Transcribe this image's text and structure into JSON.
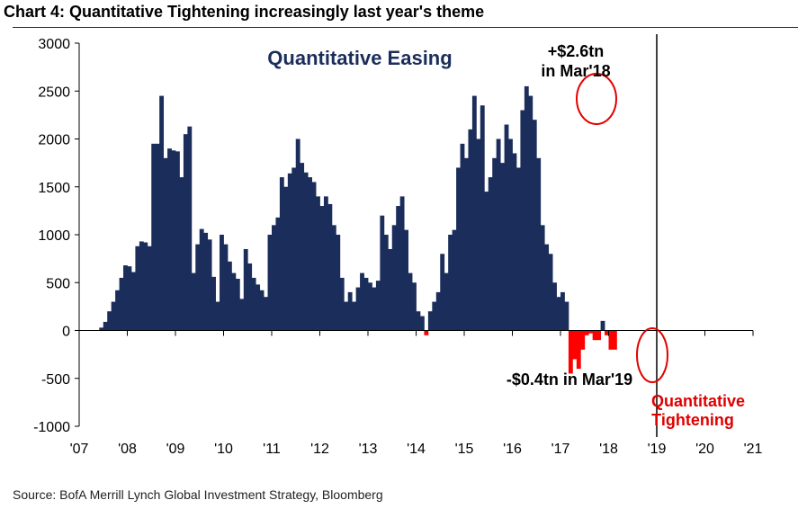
{
  "title": "Chart 4: Quantitative Tightening increasingly last year's theme",
  "source": "Source: BofA Merrill Lynch Global Investment Strategy, Bloomberg",
  "colors": {
    "positive": "#1b2d5a",
    "negative": "#ff0000",
    "annotation_blue": "#1b2d5a",
    "annotation_red": "#e00000"
  },
  "chart_data": {
    "type": "bar",
    "title": "",
    "xlabel": "",
    "ylabel": "",
    "ylim": [
      -1000,
      3000
    ],
    "yticks": [
      "3000",
      "2500",
      "2000",
      "1500",
      "1000",
      "500",
      "0",
      "-500",
      "-1000"
    ],
    "xticks": [
      "'07",
      "'08",
      "'09",
      "'10",
      "'11",
      "'12",
      "'13",
      "'14",
      "'15",
      "'16",
      "'17",
      "'18",
      "'19",
      "'20",
      "'21"
    ],
    "x_start": "2007-01",
    "x_step": "month",
    "values": [
      null,
      null,
      null,
      null,
      null,
      30,
      90,
      200,
      300,
      420,
      550,
      680,
      670,
      610,
      880,
      930,
      920,
      880,
      1950,
      1950,
      2450,
      1800,
      1900,
      1880,
      1870,
      1600,
      2050,
      2130,
      600,
      900,
      1060,
      1020,
      950,
      560,
      300,
      1000,
      900,
      720,
      600,
      540,
      330,
      850,
      700,
      550,
      480,
      420,
      350,
      1000,
      1100,
      1180,
      1600,
      1500,
      1640,
      1700,
      2000,
      1750,
      1650,
      1600,
      1550,
      1400,
      1300,
      1400,
      1320,
      1100,
      1000,
      550,
      300,
      400,
      300,
      450,
      600,
      550,
      500,
      450,
      520,
      1200,
      1000,
      850,
      1100,
      1300,
      1400,
      1050,
      600,
      500,
      200,
      150,
      -50,
      200,
      300,
      400,
      800,
      600,
      1000,
      1050,
      1700,
      1950,
      1800,
      2100,
      2450,
      2000,
      2350,
      1450,
      1600,
      1800,
      2000,
      1750,
      2150,
      2000,
      1850,
      1700,
      2300,
      2550,
      2450,
      2200,
      1800,
      1100,
      900,
      800,
      500,
      350,
      400,
      300,
      -450,
      -300,
      -400,
      -200,
      -50,
      -30,
      -100,
      -100,
      100,
      -50,
      -200,
      -200
    ],
    "annotations": [
      {
        "text": "Quantitative Easing",
        "color": "blue"
      },
      {
        "text": "+$2.6tn",
        "color": "black"
      },
      {
        "text": "in Mar'18",
        "color": "black"
      },
      {
        "text": "-$0.4tn in Mar'19",
        "color": "black"
      },
      {
        "text": "Quantitative",
        "color": "red"
      },
      {
        "text": "Tightening",
        "color": "red"
      }
    ],
    "grid": false,
    "divider_at": "2019-01"
  }
}
